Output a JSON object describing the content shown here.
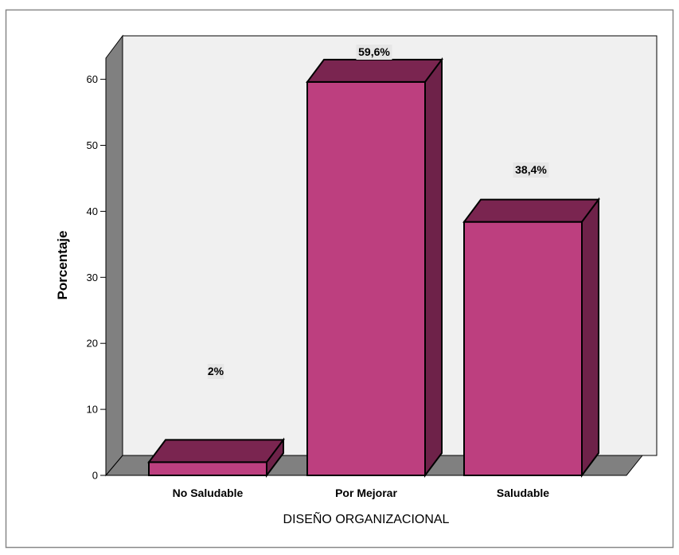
{
  "chart_data": {
    "type": "bar",
    "title": "",
    "xlabel": "DISEÑO ORGANIZACIONAL",
    "ylabel": "Porcentaje",
    "categories": [
      "No Saludable",
      "Por Mejorar",
      "Saludable"
    ],
    "values": [
      2,
      59.6,
      38.4
    ],
    "data_labels": [
      "2%",
      "59,6%",
      "38,4%"
    ],
    "yticks": [
      "0",
      "10",
      "20",
      "30",
      "40",
      "50",
      "60"
    ],
    "ylim": [
      0,
      66.5
    ],
    "grid": false,
    "colors": {
      "bar_front": "#bd3f7f",
      "bar_top": "#7a2550",
      "bar_side": "#6e2249",
      "floor": "#808080",
      "wall": "#f0f0f0",
      "left_wall": "#808080",
      "label_bg": "#e6e6e6",
      "frame": "#888888"
    }
  }
}
